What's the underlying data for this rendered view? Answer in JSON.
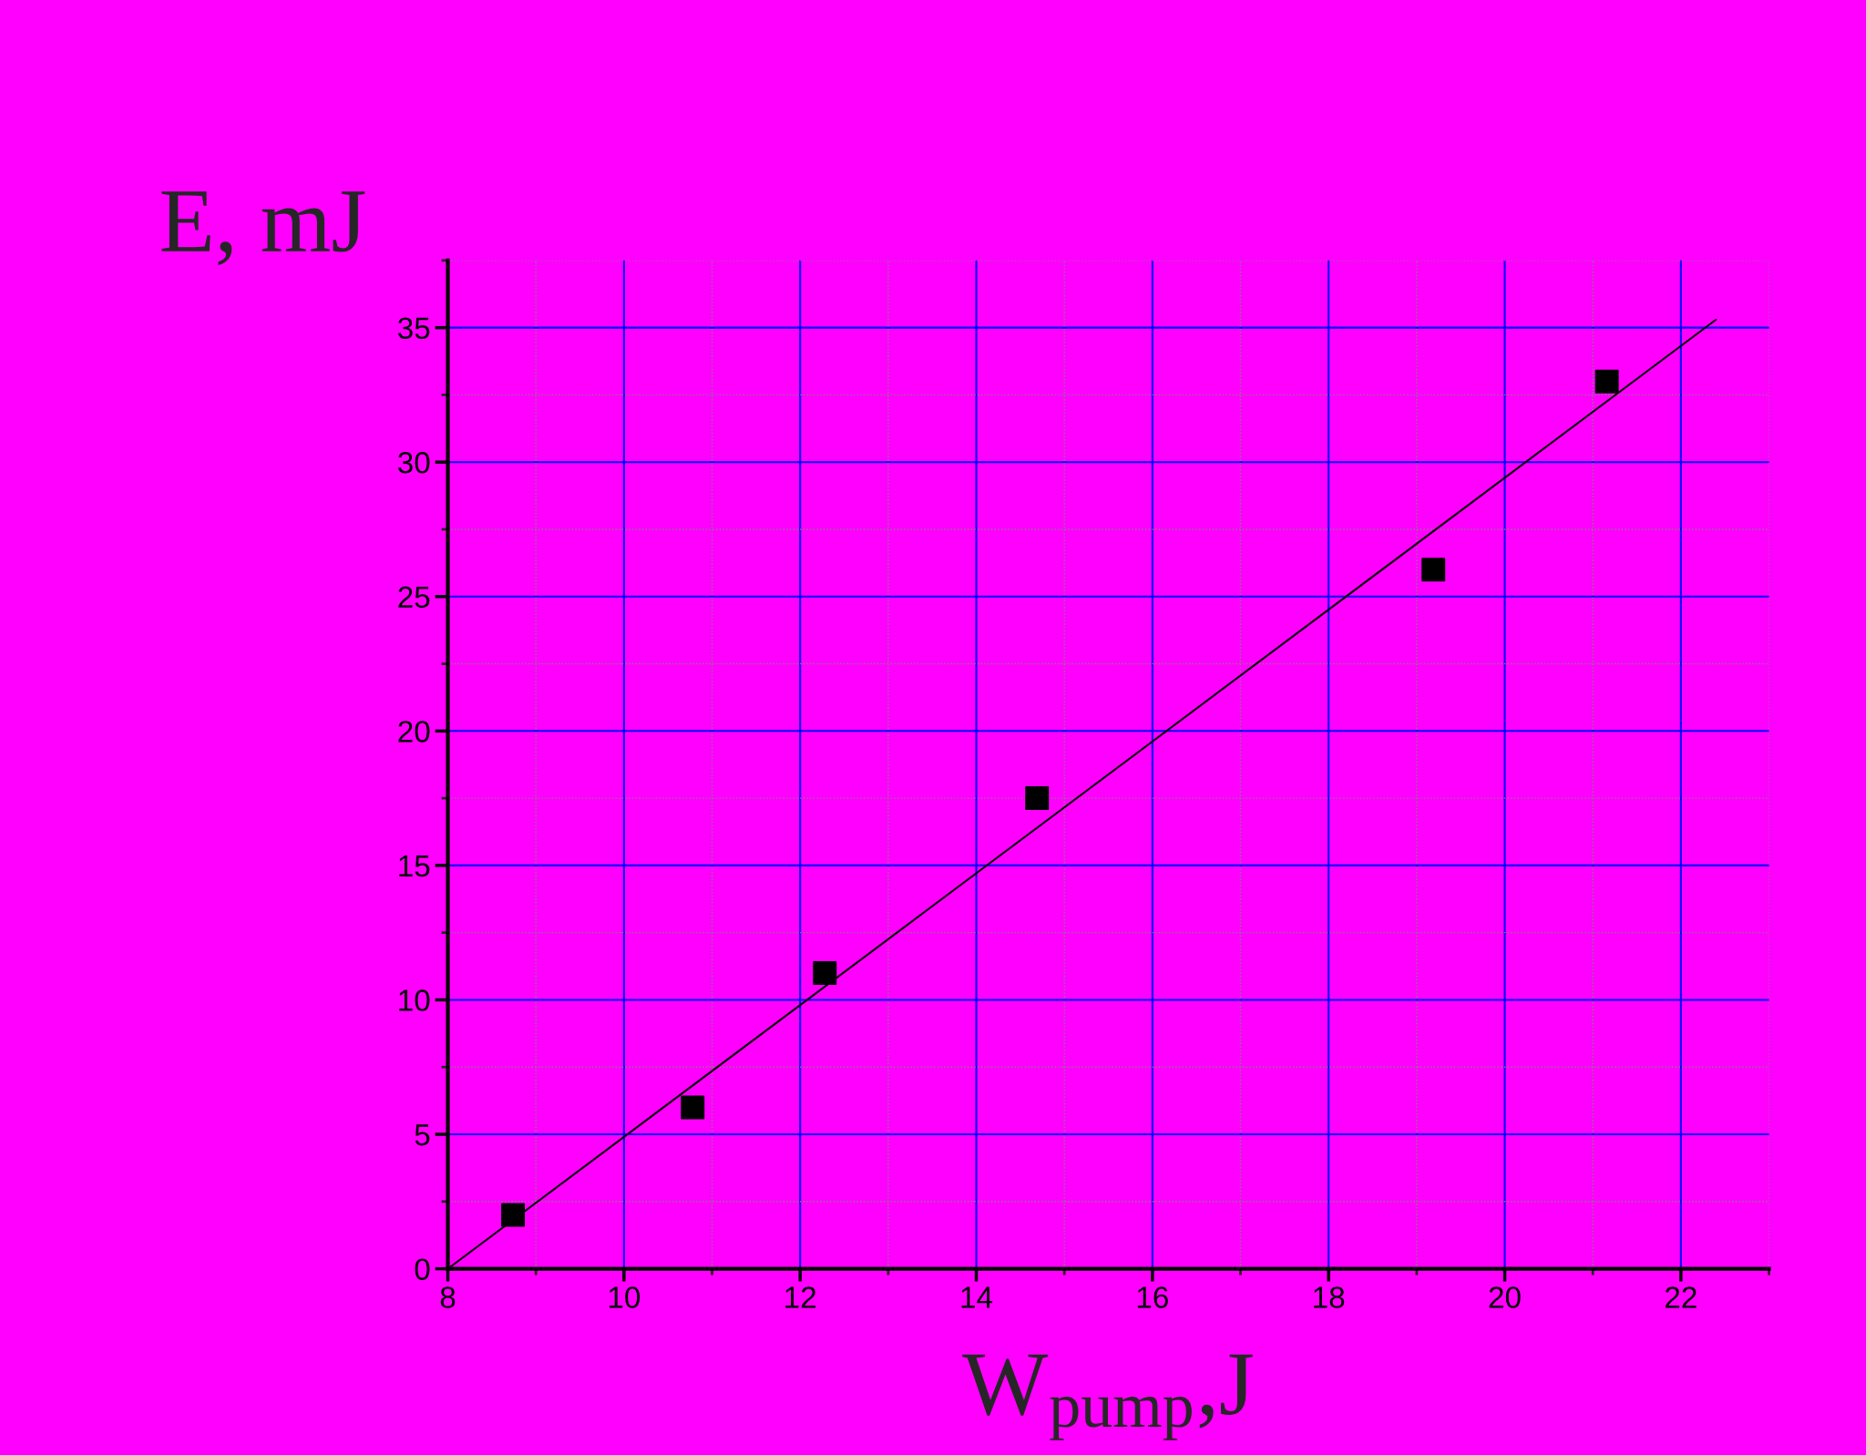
{
  "chart_data": {
    "type": "scatter",
    "xlabel": "W$_{pump}$,J",
    "ylabel": "E, mJ",
    "series": [
      {
        "color": "#000000",
        "marker": "square",
        "x": [
          8.74,
          10.78,
          12.28,
          14.69,
          19.19,
          21.16
        ],
        "values": [
          2.0,
          6.0,
          11.0,
          17.5,
          26.0,
          33.0
        ]
      },
      {
        "type": "line",
        "color": "#000000",
        "marker": "none",
        "line_style": "solid",
        "x": [
          8.0,
          22.4
        ],
        "values": [
          0.0,
          35.3
        ]
      }
    ],
    "xlim": [
      8,
      23
    ],
    "ylim": [
      0,
      37.5
    ],
    "xticks": [
      8,
      10,
      12,
      14,
      16,
      18,
      20,
      22
    ],
    "yticks": [
      0,
      5,
      10,
      15,
      20,
      25,
      30,
      35
    ],
    "grid": true,
    "legend": false
  }
}
